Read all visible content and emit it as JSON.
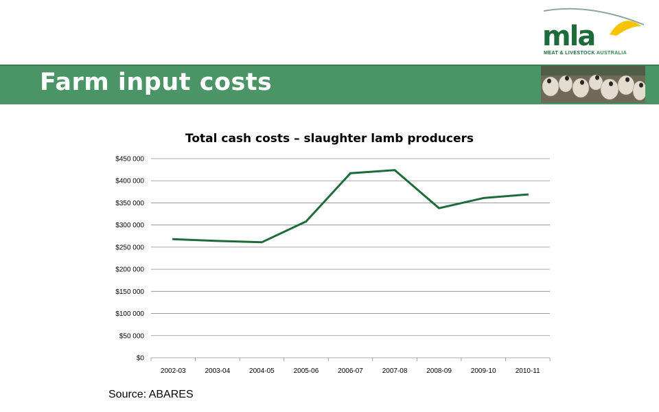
{
  "slide": {
    "title": "Farm input costs",
    "source": "Source: ABARES"
  },
  "logo": {
    "wordmark": "mla",
    "tagline_main": "MEAT & LIVESTOCK",
    "tagline_accent": "AUSTRALIA"
  },
  "photo": {
    "icon": "sheep-flock-photo"
  },
  "colors": {
    "banner": "#4a9466",
    "line": "#1e6b3a",
    "logo_green": "#1d6a3a",
    "sun_yellow": "#f5c400"
  },
  "chart_data": {
    "type": "line",
    "title": "Total cash costs – slaughter lamb producers",
    "xlabel": "",
    "ylabel": "",
    "categories": [
      "2002-03",
      "2003-04",
      "2004-05",
      "2005-06",
      "2006-07",
      "2007-08",
      "2008-09",
      "2009-10",
      "2010-11"
    ],
    "values": [
      268000,
      264000,
      261000,
      308000,
      417000,
      424000,
      338000,
      361000,
      369000
    ],
    "ylim": [
      0,
      450000
    ],
    "yticks": [
      0,
      50000,
      100000,
      150000,
      200000,
      250000,
      300000,
      350000,
      400000,
      450000
    ],
    "ytick_labels": [
      "$0",
      "$50 000",
      "$100 000",
      "$150 000",
      "$200 000",
      "$250 000",
      "$300 000",
      "$350 000",
      "$400 000",
      "$450 000"
    ],
    "grid": true,
    "legend": "none"
  }
}
